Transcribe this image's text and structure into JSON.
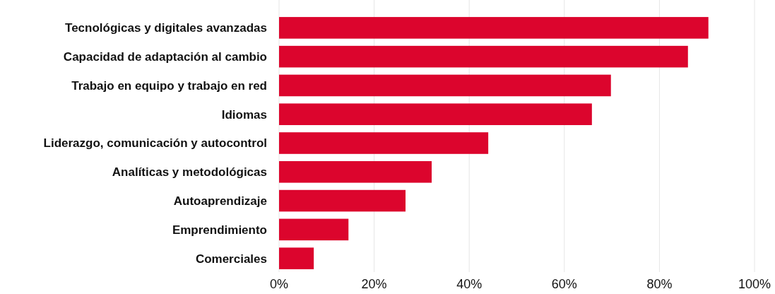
{
  "chart_data": {
    "type": "bar",
    "orientation": "horizontal",
    "categories": [
      "Tecnológicas y digitales avanzadas",
      "Capacidad de adaptación al cambio",
      "Trabajo en equipo y trabajo en red",
      "Idiomas",
      "Liderazgo, comunicación y autocontrol",
      "Analíticas y metodológicas",
      "Autoaprendizaje",
      "Emprendimiento",
      "Comerciales"
    ],
    "values": [
      90.3,
      86,
      69.8,
      65.8,
      44,
      32.1,
      26.6,
      14.6,
      7.3
    ],
    "color": "#dc052d",
    "xlim": [
      0,
      100
    ],
    "xticks": [
      {
        "value": 0,
        "label": "0%"
      },
      {
        "value": 20,
        "label": "20%"
      },
      {
        "value": 40,
        "label": "40%"
      },
      {
        "value": 60,
        "label": "60%"
      },
      {
        "value": 80,
        "label": "80%"
      },
      {
        "value": 100,
        "label": "100%"
      }
    ],
    "grid": "x"
  }
}
